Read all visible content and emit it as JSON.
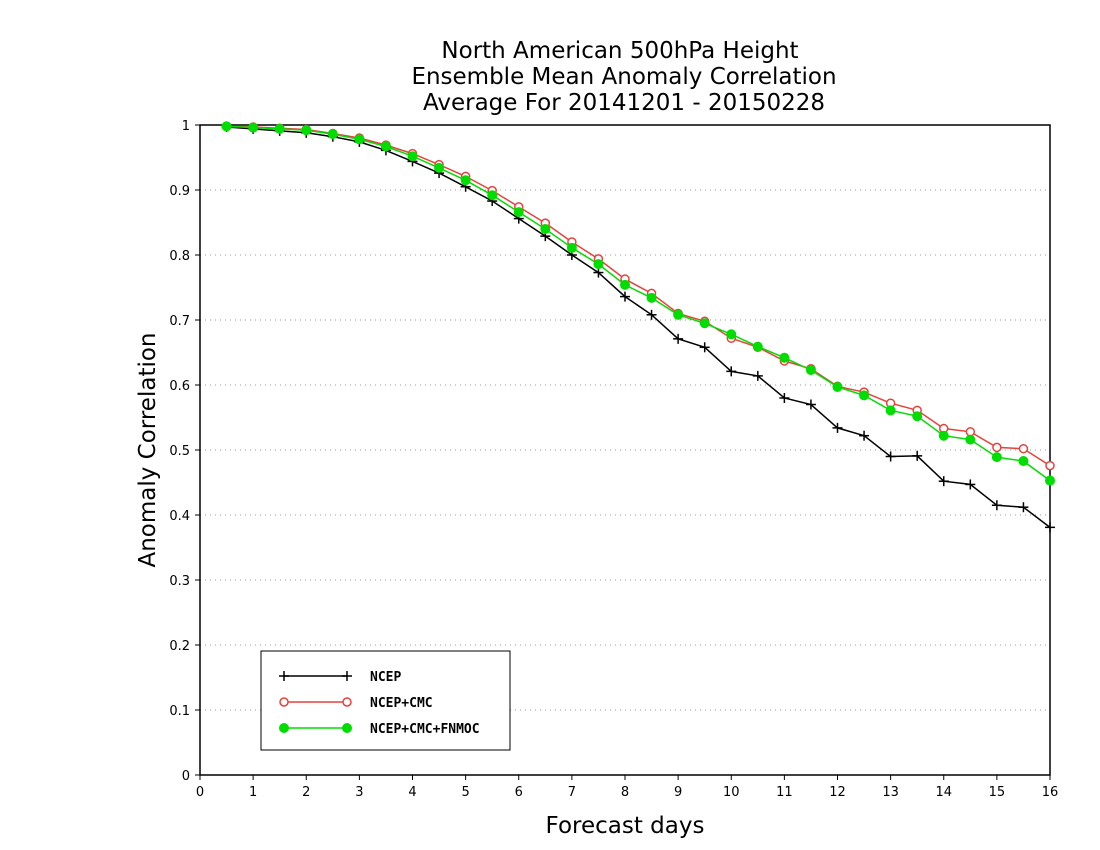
{
  "chart_data": {
    "type": "line",
    "title_lines": [
      "North American 500hPa Height",
      "Ensemble Mean Anomaly Correlation",
      "Average For 20141201 - 20150228"
    ],
    "xlabel": "Forecast days",
    "ylabel": "Anomaly Correlation",
    "xlim": [
      0,
      16
    ],
    "ylim": [
      0,
      1
    ],
    "xticks": [
      "0",
      "1",
      "2",
      "3",
      "4",
      "5",
      "6",
      "7",
      "8",
      "9",
      "10",
      "11",
      "12",
      "13",
      "14",
      "15",
      "16"
    ],
    "yticks": [
      "0",
      "0.1",
      "0.2",
      "0.3",
      "0.4",
      "0.5",
      "0.6",
      "0.7",
      "0.8",
      "0.9",
      "1"
    ],
    "grid": "horizontal-dotted",
    "legend_position": "bottom-left",
    "x": [
      0.5,
      1,
      1.5,
      2,
      2.5,
      3,
      3.5,
      4,
      4.5,
      5,
      5.5,
      6,
      6.5,
      7,
      7.5,
      8,
      8.5,
      9,
      9.5,
      10,
      10.5,
      11,
      11.5,
      12,
      12.5,
      13,
      13.5,
      14,
      14.5,
      15,
      15.5,
      16
    ],
    "series": [
      {
        "name": "NCEP",
        "color": "#000000",
        "marker": "plus",
        "values": [
          0.997,
          0.994,
          0.991,
          0.988,
          0.982,
          0.974,
          0.961,
          0.944,
          0.926,
          0.905,
          0.883,
          0.856,
          0.829,
          0.8,
          0.773,
          0.736,
          0.708,
          0.671,
          0.658,
          0.621,
          0.614,
          0.58,
          0.57,
          0.534,
          0.522,
          0.49,
          0.491,
          0.452,
          0.447,
          0.415,
          0.412,
          0.381
        ]
      },
      {
        "name": "NCEP+CMC",
        "color": "#e8413c",
        "marker": "open-circle",
        "values": [
          0.998,
          0.997,
          0.995,
          0.993,
          0.987,
          0.98,
          0.969,
          0.956,
          0.939,
          0.921,
          0.899,
          0.874,
          0.849,
          0.82,
          0.794,
          0.763,
          0.741,
          0.71,
          0.698,
          0.672,
          0.658,
          0.637,
          0.625,
          0.598,
          0.589,
          0.572,
          0.561,
          0.533,
          0.528,
          0.504,
          0.502,
          0.476
        ]
      },
      {
        "name": "NCEP+CMC+FNMOC",
        "color": "#00dd00",
        "marker": "filled-circle",
        "values": [
          0.998,
          0.996,
          0.994,
          0.992,
          0.986,
          0.978,
          0.967,
          0.952,
          0.934,
          0.915,
          0.892,
          0.866,
          0.84,
          0.811,
          0.786,
          0.754,
          0.734,
          0.708,
          0.695,
          0.678,
          0.659,
          0.642,
          0.623,
          0.597,
          0.584,
          0.561,
          0.552,
          0.522,
          0.516,
          0.489,
          0.483,
          0.453
        ]
      }
    ]
  }
}
